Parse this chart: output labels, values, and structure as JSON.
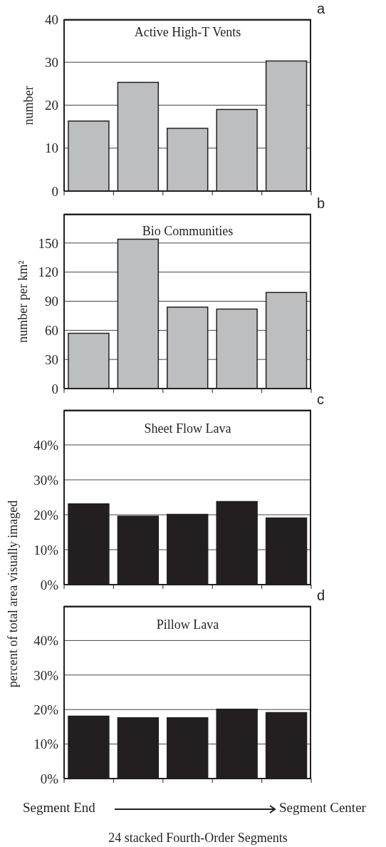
{
  "chart_data": [
    {
      "type": "bar",
      "title": "Active High-T Vents",
      "ylabel": "number",
      "categories": [
        null,
        null,
        null,
        null,
        null
      ],
      "values": [
        16.3,
        25.3,
        14.6,
        19,
        30.3
      ],
      "color": "#bcbec0",
      "ylim": [
        0,
        40
      ],
      "yticks": [
        0,
        10,
        20,
        30,
        40
      ],
      "grid": "y",
      "annotations": [
        "a"
      ]
    },
    {
      "type": "bar",
      "title": "Bio Communities",
      "ylabel": "number per km²",
      "categories": [
        null,
        null,
        null,
        null,
        null
      ],
      "values": [
        57,
        154,
        84,
        82,
        99
      ],
      "color": "#bcbec0",
      "ylim": [
        0,
        180
      ],
      "yticks": [
        0,
        30,
        60,
        90,
        120,
        150
      ],
      "grid": "y",
      "annotations": [
        "b"
      ]
    },
    {
      "type": "bar",
      "title": "Sheet Flow Lava",
      "categories": [
        null,
        null,
        null,
        null,
        null
      ],
      "values": [
        23.1,
        19.6,
        20.1,
        23.8,
        19.1
      ],
      "color": "#231f20",
      "ylim": [
        0,
        50
      ],
      "yticks": [
        {
          "value": 0,
          "label": "0%"
        },
        {
          "value": 10,
          "label": "10%"
        },
        {
          "value": 20,
          "label": "20%"
        },
        {
          "value": 30,
          "label": "30%"
        },
        {
          "value": 40,
          "label": "40%"
        }
      ],
      "grid": "y",
      "annotations": [
        "c"
      ]
    },
    {
      "type": "bar",
      "title": "Pillow Lava",
      "ylabel": "percent of total area visually imaged",
      "xlabel": "24 stacked Fourth-Order Segments",
      "categories": [
        null,
        null,
        null,
        null,
        null
      ],
      "values": [
        18.1,
        17.6,
        17.6,
        20.1,
        19.1
      ],
      "color": "#231f20",
      "ylim": [
        0,
        50
      ],
      "yticks": [
        {
          "value": 0,
          "label": "0%"
        },
        {
          "value": 10,
          "label": "10%"
        },
        {
          "value": 20,
          "label": "20%"
        },
        {
          "value": 30,
          "label": "30%"
        },
        {
          "value": 40,
          "label": "40%"
        }
      ],
      "grid": "y",
      "annotations": [
        "d",
        "Segment End",
        "Segment Center"
      ]
    }
  ]
}
